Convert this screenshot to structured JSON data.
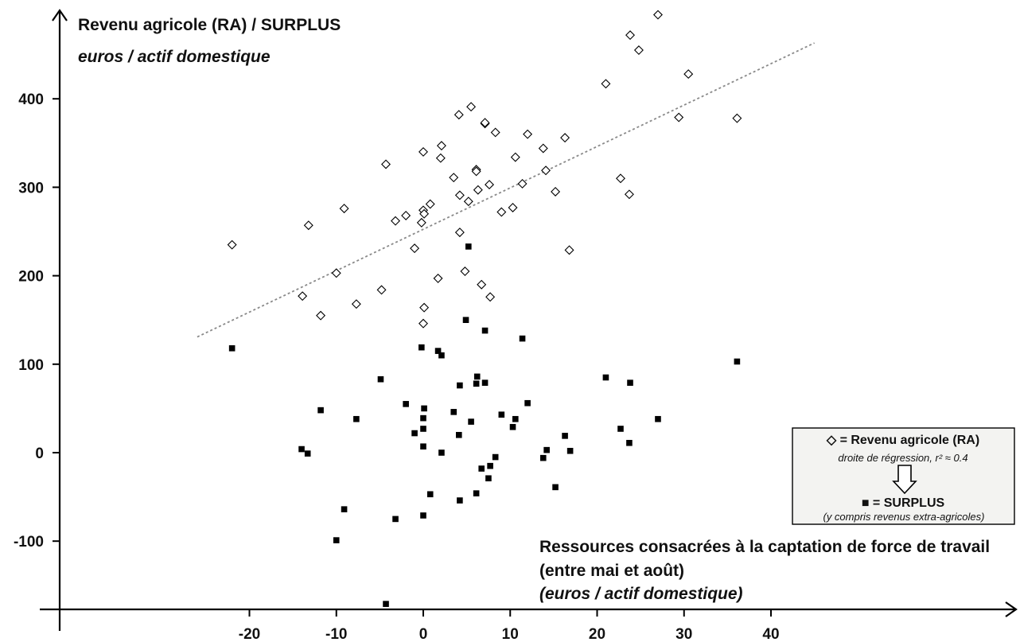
{
  "chart_data": {
    "type": "scatter",
    "ylabel": "Revenu agricole (RA) / SURPLUS",
    "ylabel_unit": "euros / actif domestique",
    "xlabel_line1": "Ressources consacrées à la captation de force de travail",
    "xlabel_line2": "(entre mai et août)",
    "xlabel_unit": "(euros / actif domestique)",
    "xlim": [
      -26,
      45
    ],
    "ylim": [
      -175,
      500
    ],
    "x_ticks": [
      -20,
      -10,
      0,
      10,
      20,
      30,
      40
    ],
    "y_ticks": [
      -100,
      0,
      100,
      200,
      300,
      400
    ],
    "x_tick_labels": [
      "-20",
      "-10",
      "0",
      "10",
      "20",
      "30",
      "40"
    ],
    "y_tick_labels": [
      "-100",
      "0",
      "100",
      "200",
      "300",
      "400"
    ],
    "grid": false,
    "legend_placement": "lower-right",
    "series": [
      {
        "name": "= Revenu agricole (RA)",
        "marker": "diamond-open",
        "color": "#000000",
        "points": [
          [
            -22.0,
            235
          ],
          [
            -13.9,
            177
          ],
          [
            -13.2,
            257
          ],
          [
            -11.8,
            155
          ],
          [
            -10.0,
            203
          ],
          [
            -9.1,
            276
          ],
          [
            -7.7,
            168
          ],
          [
            -4.8,
            184
          ],
          [
            -4.3,
            326
          ],
          [
            -3.2,
            262
          ],
          [
            -2.0,
            268
          ],
          [
            -1.0,
            231
          ],
          [
            -0.2,
            260
          ],
          [
            0.0,
            274
          ],
          [
            0.0,
            340
          ],
          [
            0.1,
            270
          ],
          [
            0.1,
            164
          ],
          [
            0.0,
            146
          ],
          [
            0.8,
            281
          ],
          [
            1.7,
            197
          ],
          [
            2.1,
            347
          ],
          [
            2.0,
            333
          ],
          [
            3.5,
            311
          ],
          [
            4.1,
            382
          ],
          [
            4.2,
            291
          ],
          [
            4.2,
            249
          ],
          [
            4.8,
            205
          ],
          [
            5.2,
            284
          ],
          [
            5.5,
            391
          ],
          [
            6.1,
            320
          ],
          [
            6.1,
            318
          ],
          [
            6.3,
            297
          ],
          [
            6.7,
            190
          ],
          [
            7.1,
            372
          ],
          [
            7.1,
            373
          ],
          [
            7.6,
            303
          ],
          [
            7.7,
            176
          ],
          [
            8.3,
            362
          ],
          [
            9.0,
            272
          ],
          [
            10.3,
            277
          ],
          [
            10.6,
            334
          ],
          [
            11.4,
            304
          ],
          [
            12.0,
            360
          ],
          [
            13.8,
            344
          ],
          [
            14.1,
            319
          ],
          [
            15.2,
            295
          ],
          [
            16.3,
            356
          ],
          [
            16.8,
            229
          ],
          [
            21.0,
            417
          ],
          [
            22.7,
            310
          ],
          [
            23.7,
            292
          ],
          [
            23.8,
            472
          ],
          [
            24.8,
            455
          ],
          [
            27.0,
            495
          ],
          [
            29.4,
            379
          ],
          [
            30.5,
            428
          ],
          [
            36.1,
            378
          ]
        ]
      },
      {
        "name": "= SURPLUS",
        "marker": "square-filled",
        "color": "#000000",
        "points": [
          [
            -22.0,
            118
          ],
          [
            -14.0,
            4
          ],
          [
            -13.3,
            -1
          ],
          [
            -11.8,
            48
          ],
          [
            -10.0,
            -99
          ],
          [
            -9.1,
            -64
          ],
          [
            -7.7,
            38
          ],
          [
            -4.9,
            83
          ],
          [
            -4.3,
            -171
          ],
          [
            -3.2,
            -75
          ],
          [
            -2.0,
            55
          ],
          [
            -1.0,
            22
          ],
          [
            -0.2,
            119
          ],
          [
            0.0,
            39
          ],
          [
            0.1,
            50
          ],
          [
            0.0,
            27
          ],
          [
            0.0,
            7
          ],
          [
            0.0,
            -71
          ],
          [
            0.8,
            -47
          ],
          [
            1.7,
            115
          ],
          [
            2.1,
            110
          ],
          [
            2.1,
            0
          ],
          [
            3.5,
            46
          ],
          [
            4.1,
            20
          ],
          [
            4.2,
            76
          ],
          [
            4.2,
            -54
          ],
          [
            4.9,
            150
          ],
          [
            5.2,
            233
          ],
          [
            5.5,
            35
          ],
          [
            6.1,
            78
          ],
          [
            6.1,
            -46
          ],
          [
            6.2,
            86
          ],
          [
            6.7,
            -18
          ],
          [
            7.1,
            79
          ],
          [
            7.1,
            138
          ],
          [
            7.5,
            -29
          ],
          [
            7.7,
            -15
          ],
          [
            8.3,
            -5
          ],
          [
            9.0,
            43
          ],
          [
            10.3,
            29
          ],
          [
            10.6,
            38
          ],
          [
            11.4,
            129
          ],
          [
            12.0,
            56
          ],
          [
            13.8,
            -6
          ],
          [
            14.2,
            3
          ],
          [
            15.2,
            -39
          ],
          [
            16.3,
            19
          ],
          [
            16.9,
            2
          ],
          [
            21.0,
            85
          ],
          [
            22.7,
            27
          ],
          [
            23.7,
            11
          ],
          [
            23.8,
            79
          ],
          [
            27.0,
            38
          ],
          [
            36.1,
            103
          ]
        ]
      }
    ],
    "regression": {
      "series": "= Revenu agricole (RA)",
      "label": "droite de régression, r² ≈ 0.4",
      "slope": 4.68,
      "intercept": 252.5
    }
  },
  "legend": {
    "ra_label": "◇  = Revenu agricole (RA)",
    "regression_label": "droite de régression, r² ≈ 0.4",
    "surplus_label": "■  = SURPLUS",
    "surplus_note": "(y compris revenus extra-agricoles)"
  }
}
